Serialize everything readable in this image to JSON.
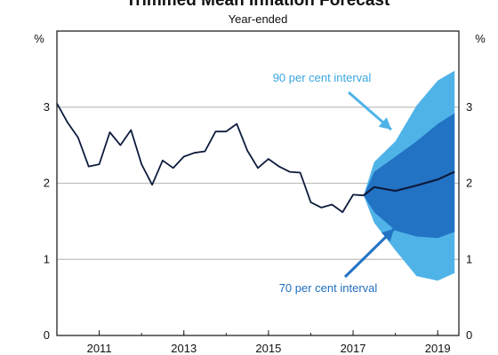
{
  "chart_data": {
    "type": "line",
    "title": "Trimmed Mean Inflation Forecast",
    "subtitle": "Year-ended",
    "ylabel_left": "%",
    "ylabel_right": "%",
    "ylim": [
      0,
      4
    ],
    "xlim": [
      2010.0,
      2019.5
    ],
    "yticks": [
      0,
      1,
      2,
      3
    ],
    "xticks": [
      {
        "label": "2011",
        "value": 2011.0
      },
      {
        "label": "2013",
        "value": 2013.0
      },
      {
        "label": "2015",
        "value": 2015.0
      },
      {
        "label": "2017",
        "value": 2017.0
      },
      {
        "label": "2019",
        "value": 2019.0
      }
    ],
    "grid": true,
    "colors": {
      "line": "#0d1b3d",
      "band90": "#4fb3e8",
      "band70": "#2373c4",
      "grid": "#bfbfbf",
      "annot90": "#3aa6e0",
      "annot70": "#1f6fc1"
    },
    "series": [
      {
        "kind": "history",
        "x": [
          2010.0,
          2010.25,
          2010.5,
          2010.75,
          2011.0,
          2011.25,
          2011.5,
          2011.75,
          2012.0,
          2012.25,
          2012.5,
          2012.75,
          2013.0,
          2013.25,
          2013.5,
          2013.75,
          2014.0,
          2014.25,
          2014.5,
          2014.75,
          2015.0,
          2015.25,
          2015.5,
          2015.75,
          2016.0,
          2016.25,
          2016.5,
          2016.75,
          2017.0,
          2017.25
        ],
        "y": [
          3.05,
          2.8,
          2.6,
          2.22,
          2.25,
          2.67,
          2.5,
          2.7,
          2.25,
          1.98,
          2.3,
          2.2,
          2.35,
          2.4,
          2.42,
          2.68,
          2.68,
          2.78,
          2.43,
          2.2,
          2.32,
          2.22,
          2.15,
          2.14,
          1.75,
          1.68,
          1.72,
          1.62,
          1.85,
          1.84
        ]
      },
      {
        "kind": "forecast",
        "x": [
          2017.25,
          2017.5,
          2018.0,
          2018.5,
          2019.0,
          2019.4
        ],
        "y": [
          1.84,
          1.95,
          1.9,
          1.97,
          2.05,
          2.15
        ]
      }
    ],
    "bands": [
      {
        "kind": "90",
        "x": [
          2017.25,
          2017.5,
          2018.0,
          2018.5,
          2019.0,
          2019.4
        ],
        "lower": [
          1.84,
          1.48,
          1.12,
          0.78,
          0.72,
          0.82
        ],
        "upper": [
          1.84,
          2.28,
          2.55,
          3.02,
          3.35,
          3.48
        ]
      },
      {
        "kind": "70",
        "x": [
          2017.25,
          2017.5,
          2018.0,
          2018.5,
          2019.0,
          2019.4
        ],
        "lower": [
          1.84,
          1.62,
          1.38,
          1.3,
          1.28,
          1.36
        ],
        "upper": [
          1.84,
          2.15,
          2.35,
          2.55,
          2.78,
          2.92
        ]
      }
    ],
    "annotations": {
      "band90": "90 per cent interval",
      "band70": "70 per cent interval"
    }
  }
}
